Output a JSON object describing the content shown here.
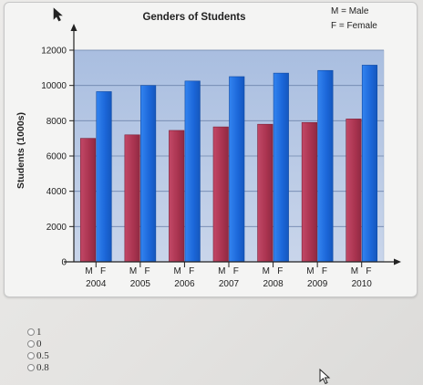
{
  "chart_data": {
    "type": "bar",
    "title": "Genders of Students",
    "ylabel": "Students (1000s)",
    "xlabel": "",
    "legend_text": [
      "M = Male",
      "F = Female"
    ],
    "legend_position": "top-right",
    "categories": [
      "2004",
      "2005",
      "2006",
      "2007",
      "2008",
      "2009",
      "2010"
    ],
    "bar_labels": [
      "M",
      "F"
    ],
    "series": [
      {
        "name": "M",
        "values": [
          7000,
          7200,
          7450,
          7650,
          7800,
          7900,
          8100
        ],
        "color": "#b03a58"
      },
      {
        "name": "F",
        "values": [
          9650,
          10000,
          10250,
          10500,
          10700,
          10850,
          11150
        ],
        "color": "#1f6fde"
      }
    ],
    "yticks": [
      0,
      2000,
      4000,
      6000,
      8000,
      10000,
      12000
    ],
    "ytick_labels": [
      "0",
      "2000",
      "4000",
      "6000",
      "8000",
      "10000",
      "12000"
    ],
    "ylim": [
      0,
      12000
    ],
    "grid": true,
    "plot_background": "#b5c7e3"
  },
  "options": [
    {
      "label": "1"
    },
    {
      "label": "0"
    },
    {
      "label": "0.5"
    },
    {
      "label": "0.8"
    }
  ]
}
